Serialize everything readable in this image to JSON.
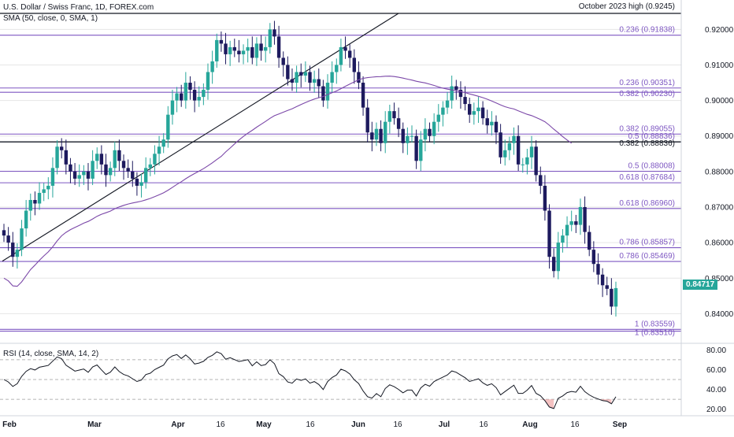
{
  "header": {
    "title": "U.S. Dollar / Swiss Franc, 1D, FOREX.com",
    "sma_label": "SMA (50, close, 0, SMA, 1)",
    "rsi_label": "RSI (14, close, SMA, 14, 2)"
  },
  "colors": {
    "up": "#26a69a",
    "down": "#1d1a5e",
    "fib": "#7e57c2",
    "sma": "#7b48a8",
    "rsi": "#131722",
    "rsi_fill": "#ef9a9a",
    "grid": "#e6e6e6"
  },
  "current_price": "0.84717",
  "chart_data": {
    "type": "candlestick",
    "x_labels": [
      "Feb",
      "Mar",
      "Apr",
      "16",
      "May",
      "16",
      "Jun",
      "16",
      "Jul",
      "16",
      "Aug",
      "16",
      "Sep"
    ],
    "y_ticks": [
      "0.92000",
      "0.91000",
      "0.90000",
      "0.89000",
      "0.88000",
      "0.87000",
      "0.86000",
      "0.85000",
      "0.84000"
    ],
    "ylim": [
      0.833,
      0.9265
    ],
    "levels": [
      {
        "label": "October 2023 high (0.9245)",
        "value": 0.9245
      },
      {
        "label": "0.236 (0.91838)",
        "value": 0.91838
      },
      {
        "label": "0.236 (0.90351)",
        "value": 0.90351
      },
      {
        "label": "0.382 (0.90230)",
        "value": 0.9023
      },
      {
        "label": "0.382 (0.89055)",
        "value": 0.89055
      },
      {
        "label": "0.5 (0.88836)",
        "value": 0.88836
      },
      {
        "label": "0.382 (0.88836)",
        "value": 0.88836
      },
      {
        "label": "0.5 (0.88008)",
        "value": 0.88008
      },
      {
        "label": "0.618 (0.87684)",
        "value": 0.87684
      },
      {
        "label": "0.618 (0.86960)",
        "value": 0.8696
      },
      {
        "label": "0.786 (0.85857)",
        "value": 0.85857
      },
      {
        "label": "0.786 (0.85469)",
        "value": 0.85469
      },
      {
        "label": "1 (0.83559)",
        "value": 0.83559
      },
      {
        "label": "1 (0.83510)",
        "value": 0.8351
      }
    ],
    "closes": [
      0.862,
      0.86,
      0.856,
      0.858,
      0.864,
      0.869,
      0.872,
      0.871,
      0.874,
      0.875,
      0.876,
      0.881,
      0.887,
      0.886,
      0.882,
      0.88,
      0.878,
      0.879,
      0.88,
      0.878,
      0.883,
      0.885,
      0.882,
      0.879,
      0.881,
      0.886,
      0.883,
      0.881,
      0.88,
      0.878,
      0.876,
      0.877,
      0.881,
      0.882,
      0.885,
      0.887,
      0.889,
      0.896,
      0.9,
      0.902,
      0.9,
      0.905,
      0.903,
      0.9,
      0.901,
      0.903,
      0.908,
      0.911,
      0.917,
      0.916,
      0.913,
      0.915,
      0.914,
      0.913,
      0.914,
      0.915,
      0.912,
      0.916,
      0.914,
      0.915,
      0.92,
      0.918,
      0.912,
      0.91,
      0.906,
      0.905,
      0.908,
      0.907,
      0.908,
      0.905,
      0.906,
      0.904,
      0.9,
      0.905,
      0.908,
      0.91,
      0.915,
      0.914,
      0.912,
      0.908,
      0.905,
      0.898,
      0.891,
      0.889,
      0.892,
      0.888,
      0.894,
      0.897,
      0.895,
      0.892,
      0.888,
      0.89,
      0.89,
      0.883,
      0.889,
      0.892,
      0.89,
      0.894,
      0.896,
      0.898,
      0.9,
      0.904,
      0.903,
      0.901,
      0.899,
      0.896,
      0.897,
      0.898,
      0.895,
      0.893,
      0.894,
      0.891,
      0.884,
      0.886,
      0.888,
      0.89,
      0.882,
      0.882,
      0.884,
      0.887,
      0.879,
      0.876,
      0.869,
      0.856,
      0.852,
      0.86,
      0.862,
      0.865,
      0.866,
      0.865,
      0.87,
      0.863,
      0.858,
      0.854,
      0.851,
      0.848,
      0.847,
      0.842,
      0.8472
    ],
    "rsi": {
      "y_ticks": [
        "80.00",
        "60.00",
        "40.00",
        "20.00"
      ],
      "ylim": [
        15,
        85
      ],
      "bands": [
        70,
        50,
        30
      ]
    }
  }
}
